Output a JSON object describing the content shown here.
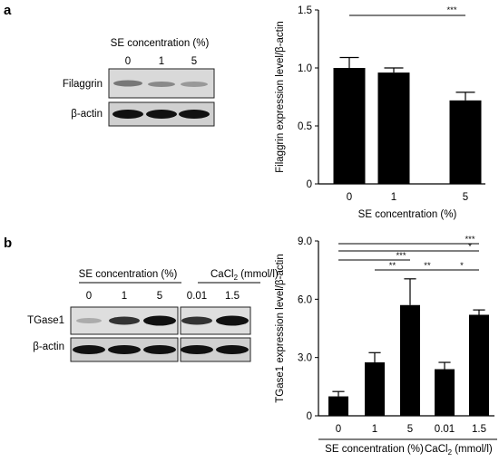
{
  "panel_a": {
    "letter": "a",
    "blot": {
      "header": "SE concentration (%)",
      "lanes": [
        "0",
        "1",
        "5"
      ],
      "rows": [
        "Filaggrin",
        "β-actin"
      ]
    }
  },
  "panel_b": {
    "letter": "b",
    "blot": {
      "header_se": "SE concentration (%)",
      "header_ca_prefix": "CaCl",
      "header_ca_sub": "2",
      "header_ca_suffix": " (mmol/l)",
      "lanes": [
        "0",
        "1",
        "5",
        "0.01",
        "1.5"
      ],
      "rows": [
        "TGase1",
        "β-actin"
      ]
    }
  },
  "chart_data": [
    {
      "type": "bar",
      "categories": [
        "0",
        "1",
        "5"
      ],
      "values": [
        1.0,
        0.96,
        0.72
      ],
      "errors": [
        0.09,
        0.04,
        0.07
      ],
      "ylabel": "Filaggrin expression level/β-actin",
      "xlabel": "SE concentration (%)",
      "ylim": [
        0,
        1.5
      ],
      "yticks": [
        "0",
        "0.5",
        "1.0",
        "1.5"
      ],
      "significance": [
        {
          "from": "0",
          "to": "5",
          "label": "***"
        }
      ],
      "color": "#000000"
    },
    {
      "type": "bar",
      "categories": [
        "0",
        "1",
        "5",
        "0.01",
        "1.5"
      ],
      "values": [
        1.0,
        2.75,
        5.7,
        2.4,
        5.2
      ],
      "errors": [
        0.25,
        0.5,
        1.35,
        0.35,
        0.25
      ],
      "ylabel": "TGase1 expression level/β-actin",
      "group_labels": [
        {
          "text": "SE concentration (%)",
          "categories": [
            "0",
            "1",
            "5"
          ]
        },
        {
          "text_prefix": "CaCl",
          "text_sub": "2",
          "text_suffix": " (mmol/l)",
          "categories": [
            "0.01",
            "1.5"
          ]
        }
      ],
      "ylim": [
        0,
        9.0
      ],
      "yticks": [
        "0",
        "3.0",
        "6.0",
        "9.0"
      ],
      "significance": [
        {
          "from": "0",
          "to": "1.5",
          "label": "***"
        },
        {
          "from": "0",
          "to": "1.5",
          "label": "*"
        },
        {
          "from": "0",
          "to": "5",
          "label": "***"
        },
        {
          "from": "1",
          "to": "5",
          "label": "**"
        },
        {
          "from": "5",
          "to": "0.01",
          "label": "**"
        },
        {
          "from": "0.01",
          "to": "1.5",
          "label": "*"
        }
      ],
      "color": "#000000"
    }
  ]
}
